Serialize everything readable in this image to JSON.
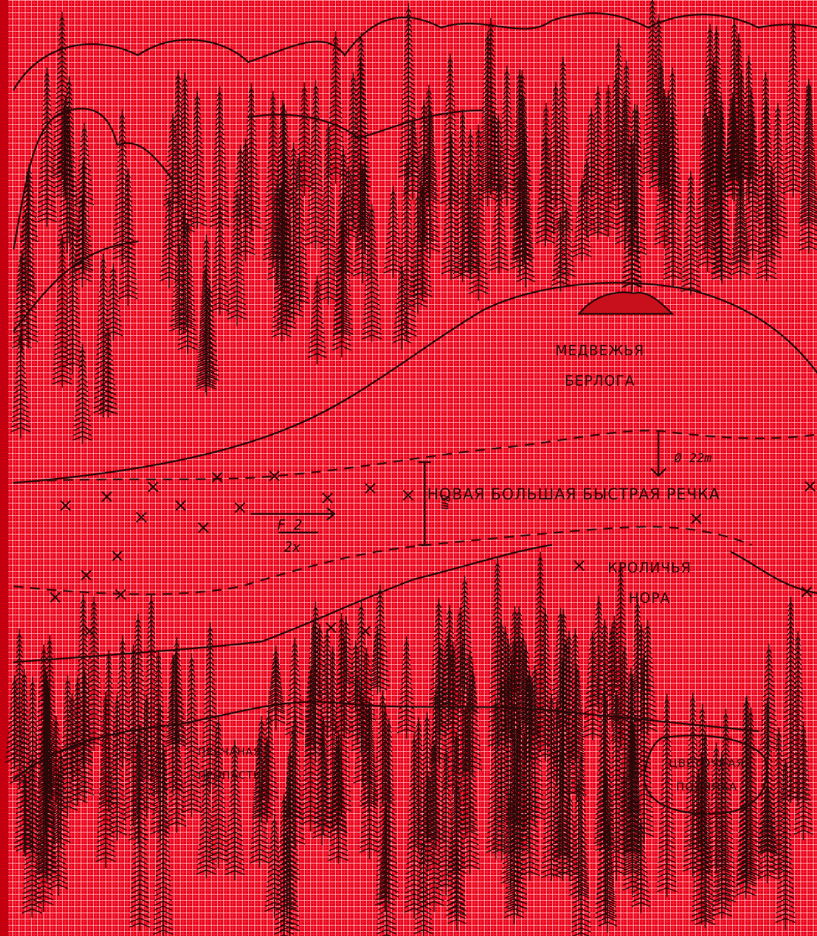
{
  "map": {
    "places": [
      {
        "lines": [
          "МЕДВЕЖЬЯ",
          "БЕРЛОГА"
        ]
      },
      {
        "lines": [
          "КРОЛИЧЬЯ",
          "НОРА"
        ]
      },
      {
        "lines": [
          "ПЕСЧАНАЯ",
          "ПРОПАСТЬ"
        ]
      },
      {
        "lines": [
          "ЦВЕТОЧНАЯ",
          "ПОЛЯНКА"
        ]
      }
    ],
    "river": {
      "name": "НОВАЯ БОЛЬШАЯ БЫСТРАЯ РЕЧКА",
      "width": "Ø 22m",
      "depth": "8m",
      "formula": {
        "numerator": "F 2",
        "denominator": "2x"
      }
    }
  }
}
